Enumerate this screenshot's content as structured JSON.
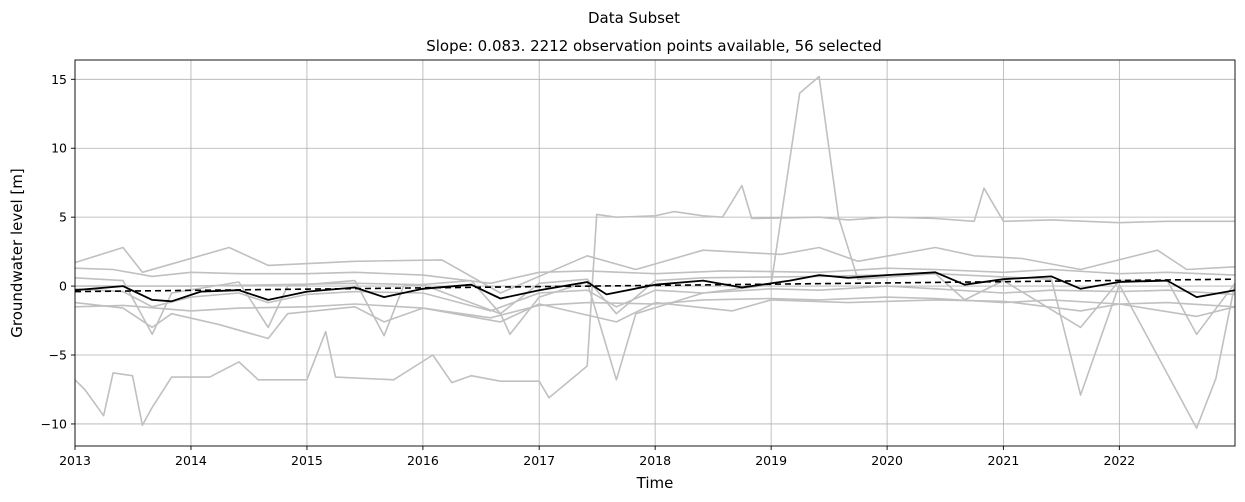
{
  "chart_data": {
    "type": "line",
    "suptitle": "Data Subset",
    "title": "Slope: 0.083. 2212 observation points available, 56 selected",
    "xlabel": "Time",
    "ylabel": "Groundwater level [m]",
    "xlim": [
      "2013-01-01",
      "2022-12-31"
    ],
    "ylim": [
      -11.6,
      16.4
    ],
    "grid": true,
    "xticks": [
      "2013",
      "2014",
      "2015",
      "2016",
      "2017",
      "2018",
      "2019",
      "2020",
      "2021",
      "2022"
    ],
    "yticks": [
      -10,
      -5,
      0,
      5,
      10,
      15
    ],
    "colors": {
      "background_series": "#c0c0c0",
      "mean": "#000000",
      "trend": "#000000"
    },
    "background_series": [
      {
        "points": [
          [
            "2013-01-01",
            1.7
          ],
          [
            "2013-06-01",
            2.8
          ],
          [
            "2013-08-01",
            1.0
          ],
          [
            "2013-10-01",
            1.4
          ],
          [
            "2014-05-01",
            2.8
          ],
          [
            "2014-09-01",
            1.5
          ],
          [
            "2015-06-01",
            1.8
          ],
          [
            "2016-03-01",
            1.9
          ],
          [
            "2016-09-01",
            -0.5
          ],
          [
            "2017-06-01",
            2.2
          ],
          [
            "2017-11-01",
            1.2
          ],
          [
            "2018-06-01",
            2.6
          ],
          [
            "2019-02-01",
            2.3
          ],
          [
            "2019-06-01",
            2.8
          ],
          [
            "2019-10-01",
            1.8
          ],
          [
            "2020-06-01",
            2.8
          ],
          [
            "2020-10-01",
            2.2
          ],
          [
            "2021-03-01",
            2.0
          ],
          [
            "2021-09-01",
            1.2
          ],
          [
            "2022-05-01",
            2.6
          ],
          [
            "2022-08-01",
            1.2
          ],
          [
            "2022-12-31",
            1.4
          ]
        ]
      },
      {
        "points": [
          [
            "2013-01-01",
            1.3
          ],
          [
            "2013-05-01",
            1.2
          ],
          [
            "2013-09-01",
            0.7
          ],
          [
            "2014-01-01",
            1.0
          ],
          [
            "2014-06-01",
            0.9
          ],
          [
            "2015-01-01",
            0.9
          ],
          [
            "2015-06-01",
            1.0
          ],
          [
            "2016-01-01",
            0.8
          ],
          [
            "2016-08-01",
            0.2
          ],
          [
            "2017-01-01",
            1.0
          ],
          [
            "2017-06-01",
            1.1
          ],
          [
            "2018-01-01",
            0.9
          ],
          [
            "2018-08-01",
            1.1
          ],
          [
            "2019-06-01",
            1.0
          ],
          [
            "2020-01-01",
            1.3
          ],
          [
            "2020-06-01",
            1.2
          ],
          [
            "2021-01-01",
            1.0
          ],
          [
            "2021-06-01",
            1.2
          ],
          [
            "2022-01-01",
            0.9
          ],
          [
            "2022-06-01",
            1.0
          ],
          [
            "2022-12-31",
            0.8
          ]
        ]
      },
      {
        "points": [
          [
            "2013-01-01",
            0.6
          ],
          [
            "2013-06-01",
            0.4
          ],
          [
            "2013-09-01",
            -3.5
          ],
          [
            "2013-11-01",
            -0.5
          ],
          [
            "2014-06-01",
            0.3
          ],
          [
            "2014-09-01",
            -3.0
          ],
          [
            "2014-11-01",
            0.0
          ],
          [
            "2015-06-01",
            0.4
          ],
          [
            "2015-09-01",
            -3.6
          ],
          [
            "2015-11-01",
            0.0
          ],
          [
            "2016-06-01",
            0.4
          ],
          [
            "2016-09-01",
            -2.0
          ],
          [
            "2017-01-01",
            0.2
          ],
          [
            "2017-06-01",
            0.5
          ],
          [
            "2017-09-01",
            -2.0
          ],
          [
            "2018-01-01",
            0.4
          ],
          [
            "2018-06-01",
            0.6
          ],
          [
            "2019-06-01",
            0.7
          ],
          [
            "2020-06-01",
            0.9
          ],
          [
            "2020-09-01",
            -1.0
          ],
          [
            "2021-01-01",
            0.4
          ],
          [
            "2021-09-01",
            -3.0
          ],
          [
            "2022-01-01",
            0.4
          ],
          [
            "2022-06-01",
            0.4
          ],
          [
            "2022-09-01",
            -3.5
          ],
          [
            "2022-12-31",
            0.2
          ]
        ]
      },
      {
        "points": [
          [
            "2013-01-01",
            -0.2
          ],
          [
            "2013-06-01",
            -0.4
          ],
          [
            "2013-09-01",
            -1.5
          ],
          [
            "2014-01-01",
            -0.8
          ],
          [
            "2014-06-01",
            -0.5
          ],
          [
            "2014-09-01",
            -1.2
          ],
          [
            "2015-01-01",
            -0.6
          ],
          [
            "2015-06-01",
            -0.4
          ],
          [
            "2016-01-01",
            -0.5
          ],
          [
            "2016-08-01",
            -1.8
          ],
          [
            "2017-01-01",
            -0.5
          ],
          [
            "2017-06-01",
            -0.3
          ],
          [
            "2017-09-01",
            -1.5
          ],
          [
            "2018-01-01",
            -0.3
          ],
          [
            "2018-06-01",
            -0.5
          ],
          [
            "2019-01-01",
            -0.2
          ],
          [
            "2019-06-01",
            -0.3
          ],
          [
            "2020-01-01",
            0.0
          ],
          [
            "2020-06-01",
            -0.2
          ],
          [
            "2021-01-01",
            -0.5
          ],
          [
            "2021-06-01",
            -0.3
          ],
          [
            "2022-01-01",
            -0.4
          ],
          [
            "2022-06-01",
            -0.3
          ],
          [
            "2022-12-31",
            -0.6
          ]
        ]
      },
      {
        "points": [
          [
            "2013-01-01",
            -1.5
          ],
          [
            "2013-06-01",
            -1.4
          ],
          [
            "2014-01-01",
            -1.8
          ],
          [
            "2014-06-01",
            -1.6
          ],
          [
            "2015-01-01",
            -1.5
          ],
          [
            "2015-06-01",
            -1.3
          ],
          [
            "2016-01-01",
            -1.6
          ],
          [
            "2016-08-01",
            -2.3
          ],
          [
            "2017-01-01",
            -1.4
          ],
          [
            "2017-06-01",
            -1.2
          ],
          [
            "2018-01-01",
            -1.3
          ],
          [
            "2018-06-01",
            -1.0
          ],
          [
            "2019-01-01",
            -0.9
          ],
          [
            "2019-06-01",
            -1.0
          ],
          [
            "2020-01-01",
            -0.8
          ],
          [
            "2020-06-01",
            -0.9
          ],
          [
            "2021-01-01",
            -1.2
          ],
          [
            "2021-06-01",
            -1.0
          ],
          [
            "2022-01-01",
            -1.3
          ],
          [
            "2022-06-01",
            -1.2
          ],
          [
            "2022-12-31",
            -1.5
          ]
        ]
      },
      {
        "points": [
          [
            "2013-01-01",
            -1.2
          ],
          [
            "2013-06-01",
            -1.6
          ],
          [
            "2013-09-01",
            -3.0
          ],
          [
            "2013-11-01",
            -2.0
          ],
          [
            "2014-04-01",
            -2.8
          ],
          [
            "2014-09-01",
            -3.8
          ],
          [
            "2014-11-01",
            -2.0
          ],
          [
            "2015-06-01",
            -1.5
          ],
          [
            "2015-09-01",
            -2.6
          ],
          [
            "2016-01-01",
            -1.6
          ],
          [
            "2016-09-01",
            -2.6
          ],
          [
            "2017-01-01",
            -1.3
          ],
          [
            "2017-09-01",
            -2.6
          ],
          [
            "2018-01-01",
            -1.2
          ],
          [
            "2018-09-01",
            -1.8
          ],
          [
            "2019-01-01",
            -1.0
          ],
          [
            "2019-09-01",
            -1.2
          ],
          [
            "2020-06-01",
            -1.0
          ],
          [
            "2021-01-01",
            -1.1
          ],
          [
            "2021-09-01",
            -1.8
          ],
          [
            "2022-01-01",
            -1.3
          ],
          [
            "2022-09-01",
            -2.2
          ],
          [
            "2022-12-31",
            -1.5
          ]
        ]
      },
      {
        "points": [
          [
            "2013-01-01",
            -6.8
          ],
          [
            "2013-02-01",
            -7.5
          ],
          [
            "2013-04-01",
            -9.4
          ],
          [
            "2013-05-01",
            -6.3
          ],
          [
            "2013-06-01",
            -6.4
          ],
          [
            "2013-07-01",
            -6.5
          ],
          [
            "2013-08-01",
            -10.1
          ],
          [
            "2013-09-01",
            -8.8
          ],
          [
            "2013-11-01",
            -6.6
          ],
          [
            "2014-03-01",
            -6.6
          ],
          [
            "2014-06-01",
            -5.5
          ],
          [
            "2014-08-01",
            -6.8
          ],
          [
            "2015-01-01",
            -6.8
          ],
          [
            "2015-03-01",
            -3.3
          ],
          [
            "2015-04-01",
            -6.6
          ],
          [
            "2015-10-01",
            -6.8
          ],
          [
            "2016-02-01",
            -5.0
          ],
          [
            "2016-04-01",
            -7.0
          ],
          [
            "2016-06-01",
            -6.5
          ],
          [
            "2016-09-01",
            -6.9
          ],
          [
            "2017-01-01",
            -6.9
          ],
          [
            "2017-02-01",
            -8.1
          ],
          [
            "2017-06-01",
            -5.8
          ],
          [
            "2017-07-01",
            5.2
          ],
          [
            "2017-09-01",
            5.0
          ],
          [
            "2018-01-01",
            5.1
          ],
          [
            "2018-03-01",
            5.4
          ],
          [
            "2018-06-01",
            5.1
          ],
          [
            "2018-08-01",
            5.0
          ],
          [
            "2018-10-01",
            7.3
          ],
          [
            "2018-11-01",
            4.9
          ],
          [
            "2019-06-01",
            5.0
          ],
          [
            "2019-09-01",
            4.8
          ],
          [
            "2020-01-01",
            5.0
          ],
          [
            "2020-06-01",
            4.9
          ],
          [
            "2020-10-01",
            4.7
          ],
          [
            "2020-11-01",
            7.1
          ],
          [
            "2021-01-01",
            4.7
          ],
          [
            "2021-06-01",
            4.8
          ],
          [
            "2022-01-01",
            4.6
          ],
          [
            "2022-06-01",
            4.7
          ],
          [
            "2022-12-31",
            4.7
          ]
        ]
      },
      {
        "points": [
          [
            "2013-01-01",
            0.0
          ],
          [
            "2014-01-01",
            0.0
          ],
          [
            "2015-06-01",
            0.2
          ],
          [
            "2016-01-01",
            0.1
          ],
          [
            "2016-09-01",
            -2.0
          ],
          [
            "2016-10-01",
            -3.5
          ],
          [
            "2017-01-01",
            -0.8
          ],
          [
            "2017-06-01",
            0.3
          ],
          [
            "2017-09-01",
            -6.8
          ],
          [
            "2017-11-01",
            -2.0
          ],
          [
            "2018-06-01",
            -0.5
          ],
          [
            "2019-01-01",
            0.1
          ],
          [
            "2019-04-01",
            14.0
          ],
          [
            "2019-06-01",
            15.2
          ],
          [
            "2019-08-01",
            5.0
          ],
          [
            "2019-10-01",
            0.5
          ],
          [
            "2020-06-01",
            0.9
          ],
          [
            "2021-06-01",
            0.5
          ],
          [
            "2021-09-01",
            -7.9
          ],
          [
            "2022-01-01",
            0.1
          ],
          [
            "2022-09-01",
            -10.3
          ],
          [
            "2022-11-01",
            -6.7
          ],
          [
            "2022-12-31",
            0.2
          ]
        ]
      }
    ],
    "mean_series": {
      "points": [
        [
          "2013-01-01",
          -0.3
        ],
        [
          "2013-06-01",
          0.0
        ],
        [
          "2013-09-01",
          -1.0
        ],
        [
          "2013-11-01",
          -1.1
        ],
        [
          "2014-02-01",
          -0.4
        ],
        [
          "2014-06-01",
          -0.3
        ],
        [
          "2014-09-01",
          -1.0
        ],
        [
          "2015-01-01",
          -0.4
        ],
        [
          "2015-06-01",
          -0.1
        ],
        [
          "2015-09-01",
          -0.8
        ],
        [
          "2016-01-01",
          -0.2
        ],
        [
          "2016-06-01",
          0.1
        ],
        [
          "2016-09-01",
          -0.9
        ],
        [
          "2017-01-01",
          -0.3
        ],
        [
          "2017-06-01",
          0.3
        ],
        [
          "2017-08-01",
          -0.6
        ],
        [
          "2018-01-01",
          0.1
        ],
        [
          "2018-06-01",
          0.4
        ],
        [
          "2018-10-01",
          -0.1
        ],
        [
          "2019-03-01",
          0.4
        ],
        [
          "2019-06-01",
          0.8
        ],
        [
          "2019-09-01",
          0.6
        ],
        [
          "2020-01-01",
          0.8
        ],
        [
          "2020-06-01",
          1.0
        ],
        [
          "2020-09-01",
          0.1
        ],
        [
          "2021-01-01",
          0.5
        ],
        [
          "2021-06-01",
          0.7
        ],
        [
          "2021-09-01",
          -0.2
        ],
        [
          "2022-01-01",
          0.3
        ],
        [
          "2022-06-01",
          0.4
        ],
        [
          "2022-09-01",
          -0.8
        ],
        [
          "2022-12-31",
          -0.3
        ]
      ]
    },
    "trend_line": {
      "style": "dashed",
      "points": [
        [
          "2013-01-01",
          -0.4
        ],
        [
          "2022-12-31",
          0.5
        ]
      ]
    }
  }
}
